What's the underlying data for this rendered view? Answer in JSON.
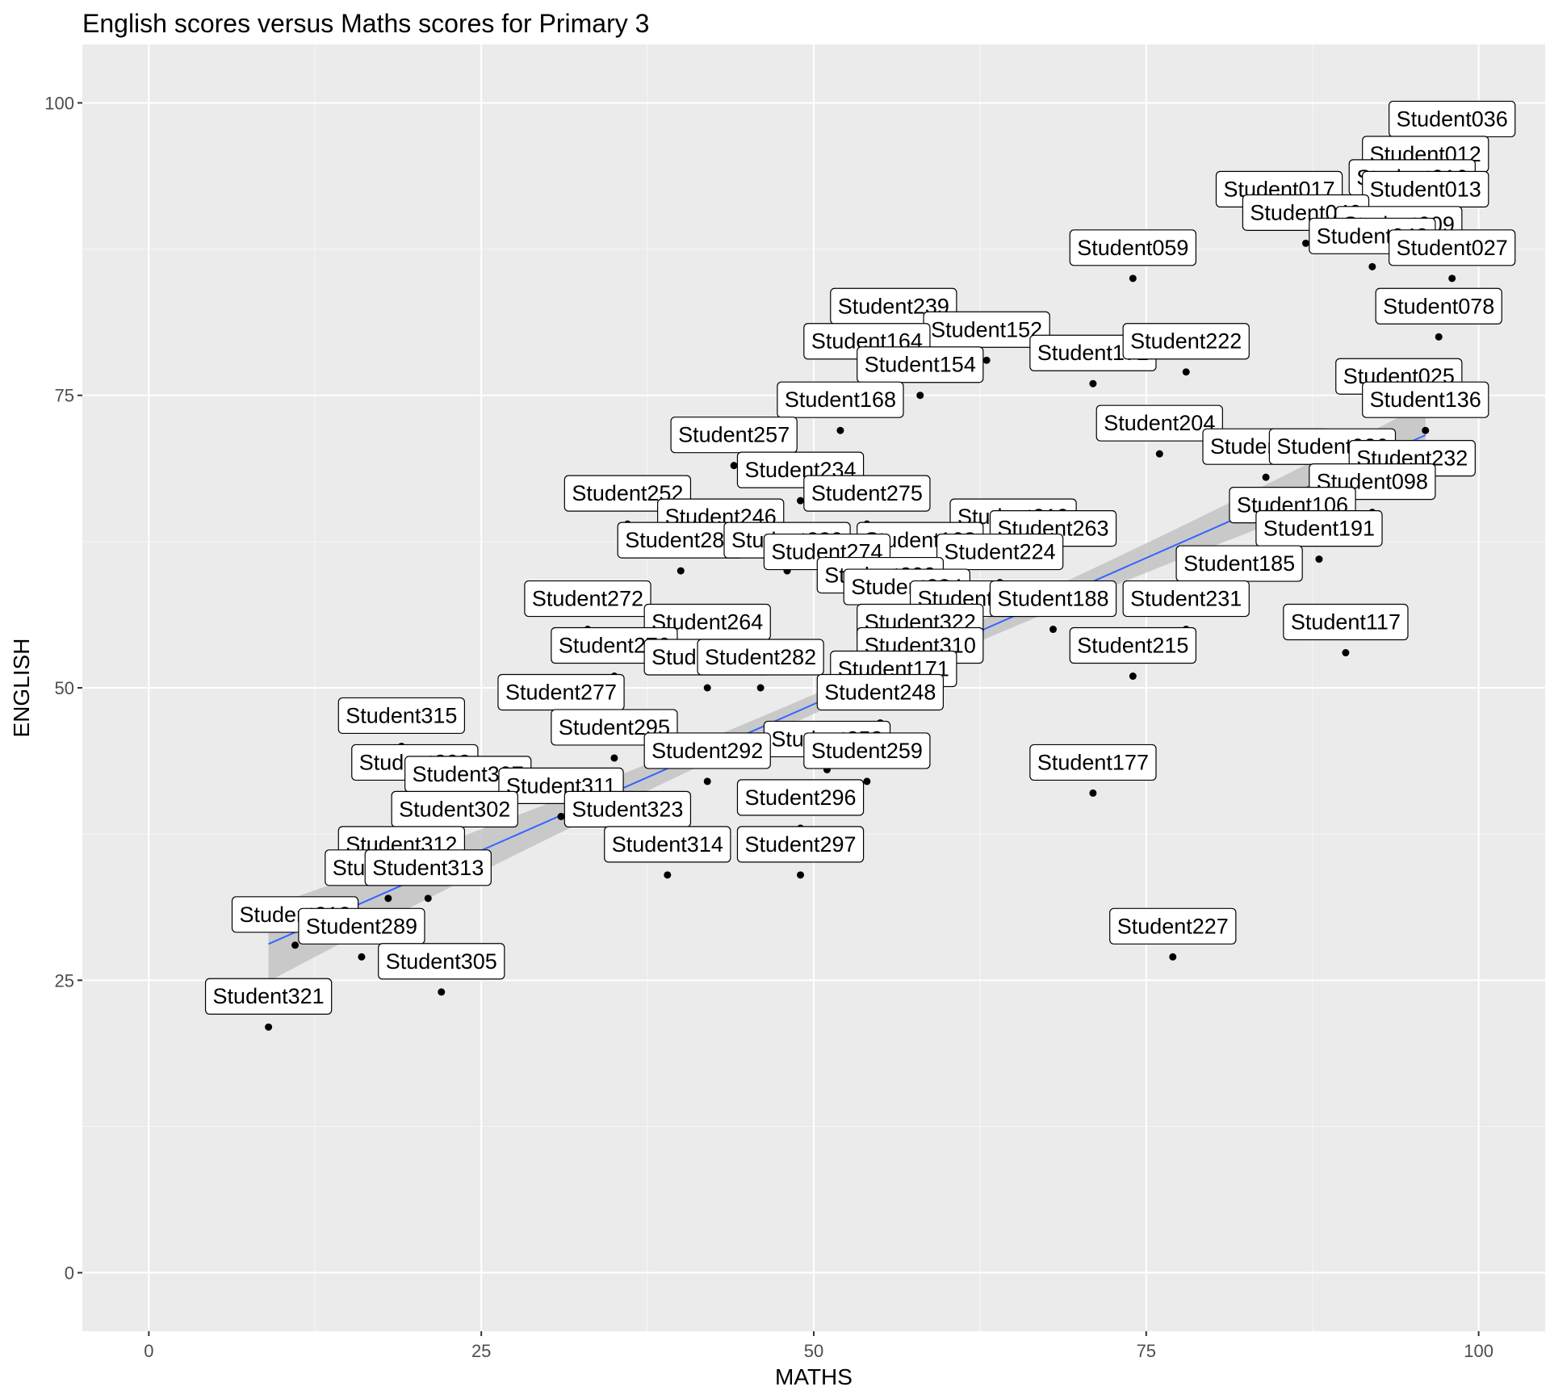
{
  "chart_data": {
    "type": "scatter",
    "title": "English scores versus Maths scores for Primary 3",
    "xlabel": "MATHS",
    "ylabel": "ENGLISH",
    "xlim": [
      -5,
      105
    ],
    "ylim": [
      -5,
      105
    ],
    "x_ticks": [
      0,
      25,
      50,
      75,
      100
    ],
    "y_ticks": [
      0,
      25,
      50,
      75,
      100
    ],
    "grid": true,
    "legend": "none",
    "colors": {
      "panel": "#ebebeb",
      "grid_major": "#ffffff",
      "points": "#000000",
      "trend_line": "#3366ff",
      "confidence_band": "#bebebe"
    },
    "trend": {
      "method": "linear",
      "x_range": [
        9,
        96
      ],
      "intercept": 23.6,
      "slope": 0.5
    },
    "points": [
      {
        "label": "Student036",
        "x": 98,
        "y": 96
      },
      {
        "label": "Student012",
        "x": 96,
        "y": 93
      },
      {
        "label": "Student016",
        "x": 95,
        "y": 91
      },
      {
        "label": "Student013",
        "x": 96,
        "y": 90
      },
      {
        "label": "Student017",
        "x": 85,
        "y": 90
      },
      {
        "label": "Student040",
        "x": 87,
        "y": 88
      },
      {
        "label": "Student009",
        "x": 94,
        "y": 87
      },
      {
        "label": "Student042",
        "x": 92,
        "y": 86
      },
      {
        "label": "Student059",
        "x": 74,
        "y": 85
      },
      {
        "label": "Student027",
        "x": 98,
        "y": 85
      },
      {
        "label": "Student078",
        "x": 97,
        "y": 80
      },
      {
        "label": "Student239",
        "x": 56,
        "y": 80
      },
      {
        "label": "Student152",
        "x": 63,
        "y": 78
      },
      {
        "label": "Student164",
        "x": 54,
        "y": 77
      },
      {
        "label": "Student172",
        "x": 71,
        "y": 76
      },
      {
        "label": "Student222",
        "x": 78,
        "y": 77
      },
      {
        "label": "Student154",
        "x": 58,
        "y": 75
      },
      {
        "label": "Student025",
        "x": 94,
        "y": 74
      },
      {
        "label": "Student136",
        "x": 96,
        "y": 72
      },
      {
        "label": "Student168",
        "x": 52,
        "y": 72
      },
      {
        "label": "Student204",
        "x": 76,
        "y": 70
      },
      {
        "label": "Student257",
        "x": 44,
        "y": 69
      },
      {
        "label": "Student145",
        "x": 84,
        "y": 68
      },
      {
        "label": "Student026",
        "x": 89,
        "y": 68
      },
      {
        "label": "Student232",
        "x": 95,
        "y": 67
      },
      {
        "label": "Student098",
        "x": 92,
        "y": 65
      },
      {
        "label": "Student234",
        "x": 49,
        "y": 66
      },
      {
        "label": "Student275",
        "x": 54,
        "y": 64
      },
      {
        "label": "Student252",
        "x": 36,
        "y": 64
      },
      {
        "label": "Student106",
        "x": 86,
        "y": 63
      },
      {
        "label": "Student191",
        "x": 88,
        "y": 61
      },
      {
        "label": "Student219",
        "x": 65,
        "y": 62
      },
      {
        "label": "Student263",
        "x": 68,
        "y": 61
      },
      {
        "label": "Student246",
        "x": 43,
        "y": 62
      },
      {
        "label": "Student163",
        "x": 58,
        "y": 60
      },
      {
        "label": "Student281",
        "x": 40,
        "y": 60
      },
      {
        "label": "Student280",
        "x": 48,
        "y": 60
      },
      {
        "label": "Student224",
        "x": 64,
        "y": 59
      },
      {
        "label": "Student185",
        "x": 82,
        "y": 58
      },
      {
        "label": "Student274",
        "x": 51,
        "y": 59
      },
      {
        "label": "Student299",
        "x": 55,
        "y": 57
      },
      {
        "label": "Student284",
        "x": 57,
        "y": 56
      },
      {
        "label": "Student272",
        "x": 33,
        "y": 55
      },
      {
        "label": "Student262",
        "x": 62,
        "y": 55
      },
      {
        "label": "Student188",
        "x": 68,
        "y": 55
      },
      {
        "label": "Student231",
        "x": 78,
        "y": 55
      },
      {
        "label": "Student117",
        "x": 90,
        "y": 53
      },
      {
        "label": "Student264",
        "x": 42,
        "y": 53
      },
      {
        "label": "Student322",
        "x": 58,
        "y": 53
      },
      {
        "label": "Student215",
        "x": 74,
        "y": 51
      },
      {
        "label": "Student310",
        "x": 58,
        "y": 51
      },
      {
        "label": "Student276",
        "x": 35,
        "y": 51
      },
      {
        "label": "Student298",
        "x": 42,
        "y": 50
      },
      {
        "label": "Student282",
        "x": 46,
        "y": 50
      },
      {
        "label": "Student171",
        "x": 56,
        "y": 49
      },
      {
        "label": "Student248",
        "x": 55,
        "y": 47
      },
      {
        "label": "Student277",
        "x": 31,
        "y": 47
      },
      {
        "label": "Student315",
        "x": 19,
        "y": 45
      },
      {
        "label": "Student295",
        "x": 35,
        "y": 44
      },
      {
        "label": "Student253",
        "x": 51,
        "y": 43
      },
      {
        "label": "Student259",
        "x": 54,
        "y": 42
      },
      {
        "label": "Student177",
        "x": 71,
        "y": 41
      },
      {
        "label": "Student292",
        "x": 42,
        "y": 42
      },
      {
        "label": "Student303",
        "x": 20,
        "y": 41
      },
      {
        "label": "Student307",
        "x": 24,
        "y": 40
      },
      {
        "label": "Student311",
        "x": 31,
        "y": 39
      },
      {
        "label": "Student296",
        "x": 49,
        "y": 38
      },
      {
        "label": "Student302",
        "x": 23,
        "y": 37
      },
      {
        "label": "Student323",
        "x": 36,
        "y": 37
      },
      {
        "label": "Student314",
        "x": 39,
        "y": 34
      },
      {
        "label": "Student297",
        "x": 49,
        "y": 34
      },
      {
        "label": "Student312",
        "x": 19,
        "y": 34
      },
      {
        "label": "Student316",
        "x": 18,
        "y": 32
      },
      {
        "label": "Student313",
        "x": 21,
        "y": 32
      },
      {
        "label": "Student318",
        "x": 11,
        "y": 28
      },
      {
        "label": "Student289",
        "x": 16,
        "y": 27
      },
      {
        "label": "Student227",
        "x": 77,
        "y": 27
      },
      {
        "label": "Student305",
        "x": 22,
        "y": 24
      },
      {
        "label": "Student321",
        "x": 9,
        "y": 21
      }
    ]
  }
}
